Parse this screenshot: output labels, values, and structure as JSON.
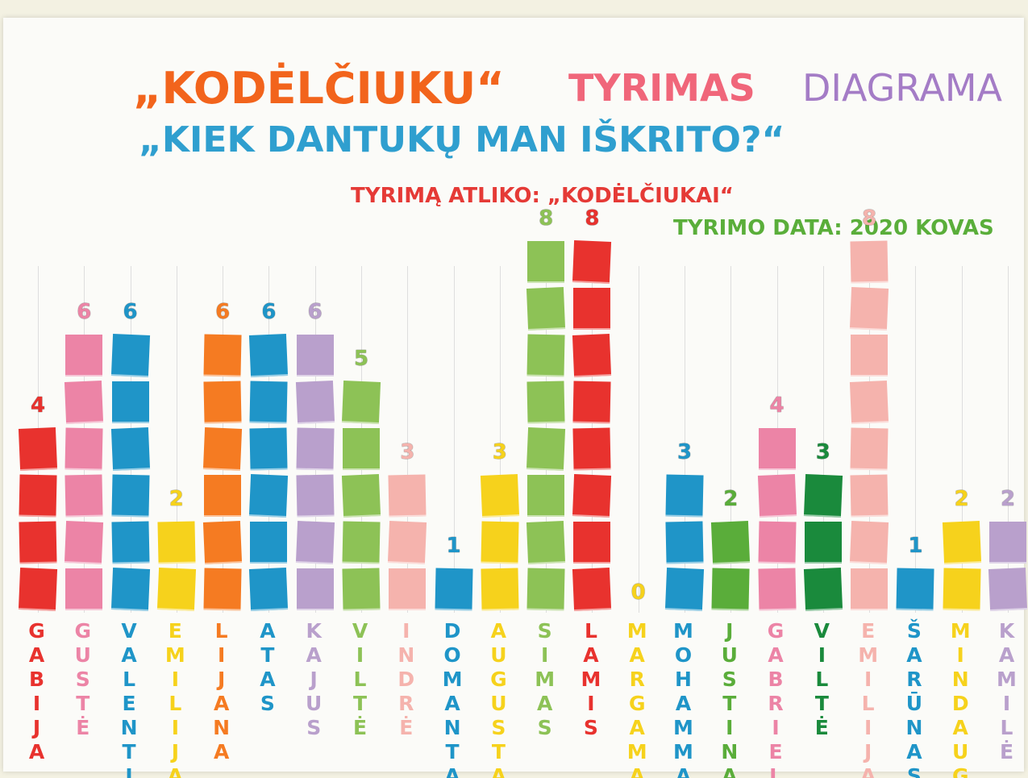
{
  "chart_data": {
    "type": "bar",
    "title": [
      "„KODĖLČIUKU“",
      "TYRIMAS",
      "DIAGRAMA"
    ],
    "subtitle": "„KIEK DANTUKŲ MAN IŠKRITO?“",
    "author": "TYRIMĄ ATLIKO: „KODĖLČIUKAI“",
    "date": "TYRIMO DATA: 2020 KOVAS",
    "categories": [
      "GABIJA",
      "GUSTĖ",
      "VALENTINA",
      "EMILIJA",
      "LIJANA",
      "ATAS",
      "KAJUS",
      "VILTĖ",
      "INDRĖ",
      "DOMANTAS",
      "AUGUSTAS",
      "SIMAS",
      "LAMIS",
      "MARGAMAD",
      "MOHAMMAD",
      "JUSTINAS",
      "GABRIELĖ",
      "VILTĖ",
      "EMILIJA",
      "ŠARŪNAS",
      "MINDAUGAS",
      "KAMILĖ"
    ],
    "values": [
      4,
      6,
      6,
      2,
      6,
      6,
      6,
      5,
      3,
      1,
      3,
      8,
      8,
      0,
      3,
      2,
      4,
      3,
      8,
      1,
      2,
      2
    ],
    "colors": [
      "#e8322e",
      "#ec84a6",
      "#1f95c8",
      "#f6d21c",
      "#f57b22",
      "#1f95c8",
      "#b9a0cc",
      "#8dc256",
      "#f5b3ad",
      "#1f95c8",
      "#f6d21c",
      "#8dc256",
      "#e8322e",
      "#f6d21c",
      "#1f95c8",
      "#5aad3a",
      "#ec84a6",
      "#1a8a3c",
      "#f5b3ad",
      "#1f95c8",
      "#f6d21c",
      "#b9a0cc"
    ]
  }
}
